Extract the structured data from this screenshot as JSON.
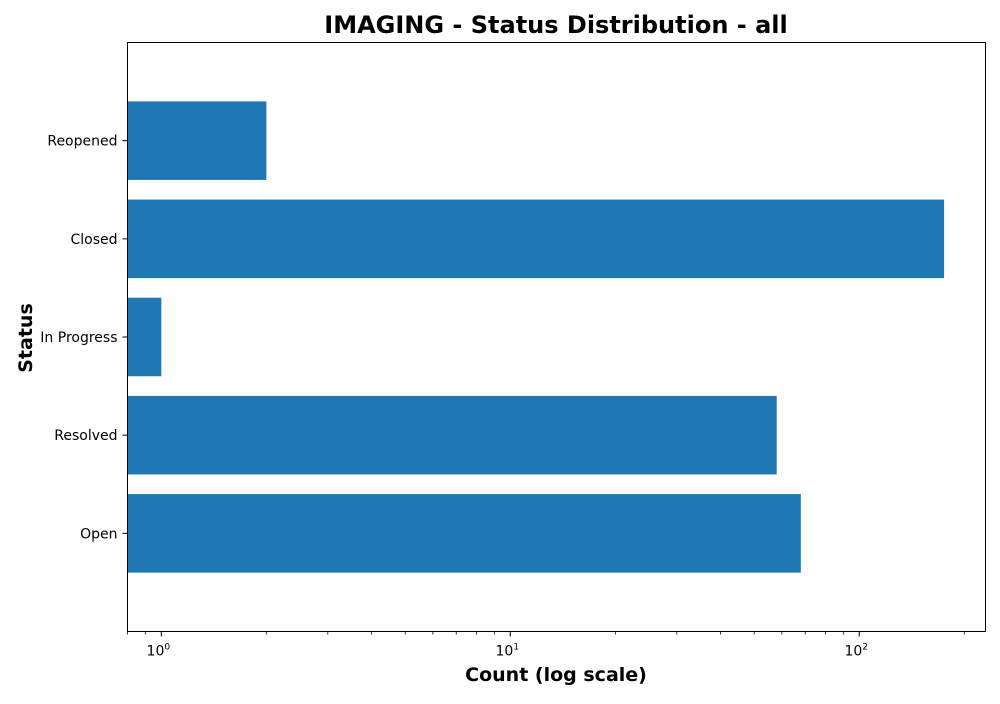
{
  "chart_data": {
    "type": "bar",
    "orientation": "horizontal",
    "title": "IMAGING - Status Distribution - all",
    "xlabel": "Count (log scale)",
    "ylabel": "Status",
    "xscale": "log",
    "xlim": [
      0.8,
      230
    ],
    "x_ticks": [
      {
        "value": 1,
        "label": "10",
        "exp": "0"
      },
      {
        "value": 10,
        "label": "10",
        "exp": "1"
      },
      {
        "value": 100,
        "label": "10",
        "exp": "2"
      }
    ],
    "categories": [
      "Open",
      "Resolved",
      "In Progress",
      "Closed",
      "Reopened"
    ],
    "values": [
      68,
      58,
      1,
      175,
      2
    ],
    "color": "#1f77b4",
    "grid": false,
    "legend": "none"
  }
}
